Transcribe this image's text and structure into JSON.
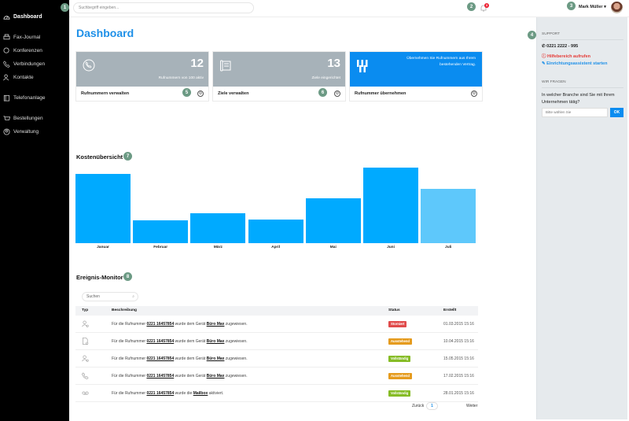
{
  "sidebar": {
    "items": [
      {
        "label": "Dashboard",
        "icon": "gauge-icon",
        "active": true
      },
      {
        "label": "Fax-Journal",
        "icon": "printer-icon"
      },
      {
        "label": "Konferenzen",
        "icon": "chat-icon"
      },
      {
        "label": "Verbindungen",
        "icon": "phone-call-icon"
      },
      {
        "label": "Kontakte",
        "icon": "contacts-icon"
      },
      {
        "label": "Telefonanlage",
        "icon": "phone-system-icon"
      },
      {
        "label": "Bestellungen",
        "icon": "cart-icon"
      },
      {
        "label": "Verwaltung",
        "icon": "admin-icon"
      }
    ]
  },
  "topbar": {
    "search_placeholder": "Suchbegriff eingeben...",
    "notification_count": "3",
    "user_name": "Mark Müller ▾"
  },
  "markers": [
    "1",
    "2",
    "3",
    "4",
    "5",
    "6",
    "7",
    "8"
  ],
  "main": {
    "title": "Dashboard",
    "cards": [
      {
        "number": "12",
        "subtitle": "Rufnummern von 100 aktiv",
        "label": "Rufnummern verwalten"
      },
      {
        "number": "13",
        "subtitle": "Ziele eingerichtet",
        "label": "Ziele verwalten"
      },
      {
        "description": "Übernehmen Sie Rufnummern aus Ihrem bestehenden Vertrag.",
        "label": "Rufnummer übernehmen"
      }
    ],
    "costs_title": "Kostenübersicht",
    "monitor_title": "Ereignis-Monitor"
  },
  "chart_data": {
    "type": "bar",
    "title": "Kostenübersicht",
    "categories": [
      "Januar",
      "Februar",
      "März",
      "April",
      "Mai",
      "Juni",
      "Juli"
    ],
    "values": [
      88,
      29,
      38,
      30,
      57,
      96,
      69
    ],
    "xlabel": "",
    "ylabel": "",
    "grid": false,
    "colors": [
      "#00aaff",
      "#00aaff",
      "#00aaff",
      "#00aaff",
      "#00aaff",
      "#00aaff",
      "#5ec8fb"
    ]
  },
  "table": {
    "search_placeholder": "Suchen",
    "headers": {
      "type": "Typ",
      "desc": "Beschreibung",
      "status": "Status",
      "created": "Erstellt"
    },
    "rows": [
      {
        "icon": "user-device-icon",
        "pre": "Für die Rufnummer ",
        "number": "0221 16457854",
        "mid": " wurde dem Gerät ",
        "target": "Büro Max",
        "post": " zugewiesen.",
        "status": "Storniert",
        "status_color": "#e04b4b",
        "date": "01.03.2015 15:16"
      },
      {
        "icon": "document-icon",
        "pre": "Für die Rufnummer ",
        "number": "0221 16457854",
        "mid": " wurde dem Gerät ",
        "target": "Büro Max",
        "post": " zugewiesen.",
        "status": "Ausstehend",
        "status_color": "#e59b1e",
        "date": "10.04.2015 15:16"
      },
      {
        "icon": "user-device-icon",
        "pre": "Für die Rufnummer ",
        "number": "0221 16457854",
        "mid": " wurde dem Gerät ",
        "target": "Büro Max",
        "post": " zugewiesen.",
        "status": "Vollständig",
        "status_color": "#86bc26",
        "date": "15.05.2015 15:16"
      },
      {
        "icon": "phone-icon",
        "pre": "Für die Rufnummer ",
        "number": "0221 16457854",
        "mid": " wurde dem Gerät ",
        "target": "Büro Max",
        "post": " zugewiesen.",
        "status": "Ausstehend",
        "status_color": "#e59b1e",
        "date": "17.02.2015 15:16"
      },
      {
        "icon": "voicemail-icon",
        "pre": "Für die Rufnummer ",
        "number": "0221 16457854",
        "mid": " wurde die ",
        "target": "Mailbox",
        "post": " aktiviert.",
        "status": "Vollständig",
        "status_color": "#86bc26",
        "date": "28.01.2015 15:16"
      }
    ],
    "pager": {
      "prev": "Zurück",
      "page": "1",
      "next": "Weiter"
    }
  },
  "right_panel": {
    "support_heading": "SUPPORT",
    "phone": "0221 2222 - 995",
    "help_link": "Hilfebereich aufrufen",
    "wizard_link": "Einrichtungsassistent starten",
    "survey_heading": "WIR FRAGEN",
    "question": "In welcher Branche sind Sie mit Ihrem Unternehmen tätig?",
    "select_placeholder": "Bitte wählen Sie",
    "ok_label": "OK"
  },
  "colors": {
    "accent": "#1e90e8",
    "bar": "#00aaff",
    "marker": "#6c9a84",
    "card_gray": "#a7b2b9"
  }
}
